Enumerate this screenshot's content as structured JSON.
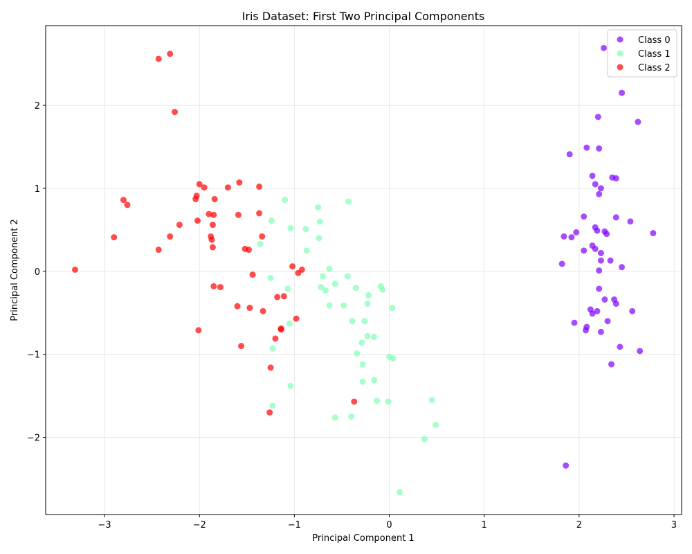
{
  "chart_data": {
    "type": "scatter",
    "title": "Iris Dataset: First Two Principal Components",
    "xlabel": "Principal Component 1",
    "ylabel": "Principal Component 2",
    "xlim": [
      -3.62,
      3.08
    ],
    "ylim": [
      -2.93,
      2.96
    ],
    "xticks": [
      -3,
      -2,
      -1,
      0,
      1,
      2,
      3
    ],
    "yticks": [
      -2,
      -1,
      0,
      1,
      2
    ],
    "grid": true,
    "legend_position": "top-right",
    "series": [
      {
        "name": "Class 0",
        "color": "#8000ff",
        "points": [
          [
            2.26,
            2.69
          ],
          [
            2.45,
            2.15
          ],
          [
            2.2,
            1.86
          ],
          [
            2.62,
            1.8
          ],
          [
            2.08,
            1.49
          ],
          [
            2.21,
            1.48
          ],
          [
            1.9,
            1.41
          ],
          [
            2.14,
            1.15
          ],
          [
            2.35,
            1.13
          ],
          [
            2.39,
            1.12
          ],
          [
            2.17,
            1.05
          ],
          [
            2.23,
            1.0
          ],
          [
            2.21,
            0.93
          ],
          [
            2.05,
            0.66
          ],
          [
            2.39,
            0.65
          ],
          [
            2.54,
            0.6
          ],
          [
            2.17,
            0.53
          ],
          [
            2.19,
            0.49
          ],
          [
            2.27,
            0.48
          ],
          [
            1.97,
            0.47
          ],
          [
            2.29,
            0.45
          ],
          [
            2.78,
            0.46
          ],
          [
            1.84,
            0.42
          ],
          [
            1.92,
            0.41
          ],
          [
            2.14,
            0.31
          ],
          [
            2.17,
            0.27
          ],
          [
            2.05,
            0.25
          ],
          [
            2.23,
            0.22
          ],
          [
            2.23,
            0.13
          ],
          [
            2.33,
            0.13
          ],
          [
            1.82,
            0.09
          ],
          [
            2.45,
            0.05
          ],
          [
            2.21,
            0.01
          ],
          [
            2.21,
            -0.21
          ],
          [
            2.27,
            -0.34
          ],
          [
            2.37,
            -0.34
          ],
          [
            2.39,
            -0.39
          ],
          [
            2.12,
            -0.46
          ],
          [
            2.19,
            -0.48
          ],
          [
            2.56,
            -0.48
          ],
          [
            2.14,
            -0.51
          ],
          [
            2.3,
            -0.6
          ],
          [
            1.95,
            -0.62
          ],
          [
            2.08,
            -0.67
          ],
          [
            2.07,
            -0.71
          ],
          [
            2.23,
            -0.73
          ],
          [
            2.43,
            -0.91
          ],
          [
            2.64,
            -0.96
          ],
          [
            2.34,
            -1.12
          ],
          [
            1.86,
            -2.34
          ]
        ]
      },
      {
        "name": "Class 1",
        "color": "#80ffb4",
        "points": [
          [
            -1.1,
            0.86
          ],
          [
            -0.43,
            0.84
          ],
          [
            -0.75,
            0.77
          ],
          [
            -1.24,
            0.61
          ],
          [
            -0.73,
            0.6
          ],
          [
            -1.04,
            0.52
          ],
          [
            -0.88,
            0.51
          ],
          [
            -0.74,
            0.4
          ],
          [
            -1.36,
            0.33
          ],
          [
            -0.87,
            0.25
          ],
          [
            -0.63,
            0.03
          ],
          [
            -0.7,
            -0.06
          ],
          [
            -1.25,
            -0.08
          ],
          [
            -0.44,
            -0.06
          ],
          [
            -0.57,
            -0.15
          ],
          [
            -0.72,
            -0.19
          ],
          [
            -1.07,
            -0.21
          ],
          [
            -0.35,
            -0.2
          ],
          [
            -0.09,
            -0.18
          ],
          [
            -0.67,
            -0.23
          ],
          [
            -0.07,
            -0.22
          ],
          [
            -0.22,
            -0.29
          ],
          [
            -0.23,
            -0.39
          ],
          [
            -0.63,
            -0.41
          ],
          [
            -0.48,
            -0.41
          ],
          [
            0.03,
            -0.44
          ],
          [
            -0.39,
            -0.6
          ],
          [
            -0.26,
            -0.6
          ],
          [
            -1.05,
            -0.63
          ],
          [
            -0.23,
            -0.78
          ],
          [
            -0.16,
            -0.79
          ],
          [
            -0.29,
            -0.86
          ],
          [
            -1.23,
            -0.93
          ],
          [
            -0.34,
            -0.99
          ],
          [
            0.0,
            -1.03
          ],
          [
            0.04,
            -1.05
          ],
          [
            -0.28,
            -1.12
          ],
          [
            -0.16,
            -1.31
          ],
          [
            -0.28,
            -1.33
          ],
          [
            -1.04,
            -1.38
          ],
          [
            0.45,
            -1.55
          ],
          [
            -0.13,
            -1.56
          ],
          [
            -0.01,
            -1.57
          ],
          [
            -1.23,
            -1.62
          ],
          [
            -0.57,
            -1.76
          ],
          [
            -0.4,
            -1.75
          ],
          [
            0.49,
            -1.85
          ],
          [
            0.37,
            -2.02
          ],
          [
            0.11,
            -2.66
          ]
        ]
      },
      {
        "name": "Class 2",
        "color": "#ff0000",
        "points": [
          [
            -2.31,
            2.62
          ],
          [
            -2.43,
            2.56
          ],
          [
            -2.26,
            1.92
          ],
          [
            -2.0,
            1.05
          ],
          [
            -1.58,
            1.07
          ],
          [
            -1.95,
            1.01
          ],
          [
            -1.7,
            1.01
          ],
          [
            -1.37,
            1.02
          ],
          [
            -2.03,
            0.91
          ],
          [
            -2.04,
            0.87
          ],
          [
            -1.84,
            0.87
          ],
          [
            -2.8,
            0.86
          ],
          [
            -2.76,
            0.8
          ],
          [
            -1.9,
            0.69
          ],
          [
            -1.85,
            0.68
          ],
          [
            -1.59,
            0.68
          ],
          [
            -1.37,
            0.7
          ],
          [
            -2.02,
            0.61
          ],
          [
            -2.21,
            0.56
          ],
          [
            -1.86,
            0.56
          ],
          [
            -2.9,
            0.41
          ],
          [
            -2.31,
            0.42
          ],
          [
            -1.88,
            0.42
          ],
          [
            -1.87,
            0.38
          ],
          [
            -1.34,
            0.42
          ],
          [
            -2.43,
            0.26
          ],
          [
            -1.86,
            0.29
          ],
          [
            -1.52,
            0.27
          ],
          [
            -1.48,
            0.26
          ],
          [
            -3.31,
            0.02
          ],
          [
            -1.02,
            0.06
          ],
          [
            -0.92,
            0.02
          ],
          [
            -0.96,
            -0.02
          ],
          [
            -1.44,
            -0.04
          ],
          [
            -1.85,
            -0.18
          ],
          [
            -1.78,
            -0.19
          ],
          [
            -1.18,
            -0.31
          ],
          [
            -1.11,
            -0.3
          ],
          [
            -1.6,
            -0.42
          ],
          [
            -1.47,
            -0.44
          ],
          [
            -1.33,
            -0.48
          ],
          [
            -0.98,
            -0.57
          ],
          [
            -2.01,
            -0.71
          ],
          [
            -1.14,
            -0.7
          ],
          [
            -1.14,
            -0.69
          ],
          [
            -1.2,
            -0.81
          ],
          [
            -1.56,
            -0.9
          ],
          [
            -1.25,
            -1.16
          ],
          [
            -0.37,
            -1.57
          ],
          [
            -1.26,
            -1.7
          ]
        ]
      }
    ]
  }
}
